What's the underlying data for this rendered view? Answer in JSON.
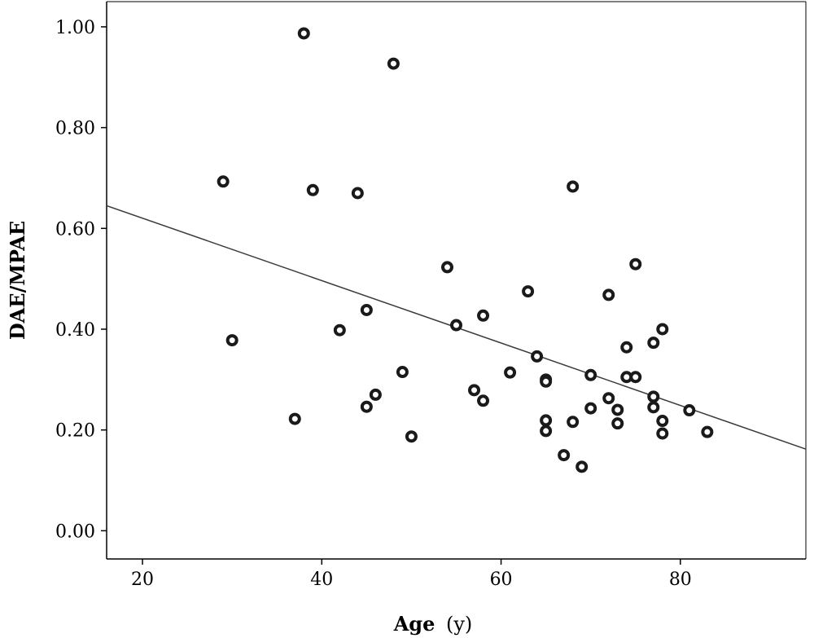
{
  "chart_data": {
    "type": "scatter",
    "title": "",
    "xlabel": {
      "bold": "Age",
      "normal": "(y)"
    },
    "ylabel": "DAE/MPAE",
    "xlim": [
      16,
      94
    ],
    "ylim": [
      -0.056,
      1.05
    ],
    "xticks": [
      20,
      40,
      60,
      80
    ],
    "yticks": [
      0.0,
      0.2,
      0.4,
      0.6,
      0.8,
      1.0
    ],
    "ytick_labels": [
      "0.00",
      "0.20",
      "0.40",
      "0.60",
      "0.80",
      "1.00"
    ],
    "grid": false,
    "points": [
      {
        "x": 29,
        "y": 0.693
      },
      {
        "x": 30,
        "y": 0.378
      },
      {
        "x": 37,
        "y": 0.222
      },
      {
        "x": 38,
        "y": 0.987
      },
      {
        "x": 39,
        "y": 0.676
      },
      {
        "x": 42,
        "y": 0.398
      },
      {
        "x": 44,
        "y": 0.67
      },
      {
        "x": 45,
        "y": 0.438
      },
      {
        "x": 45,
        "y": 0.246
      },
      {
        "x": 46,
        "y": 0.27
      },
      {
        "x": 48,
        "y": 0.927
      },
      {
        "x": 49,
        "y": 0.315
      },
      {
        "x": 50,
        "y": 0.187
      },
      {
        "x": 54,
        "y": 0.523
      },
      {
        "x": 55,
        "y": 0.408
      },
      {
        "x": 57,
        "y": 0.279
      },
      {
        "x": 58,
        "y": 0.427
      },
      {
        "x": 58,
        "y": 0.258
      },
      {
        "x": 61,
        "y": 0.314
      },
      {
        "x": 63,
        "y": 0.475
      },
      {
        "x": 64,
        "y": 0.346
      },
      {
        "x": 65,
        "y": 0.3
      },
      {
        "x": 65,
        "y": 0.296
      },
      {
        "x": 65,
        "y": 0.219
      },
      {
        "x": 65,
        "y": 0.198
      },
      {
        "x": 67,
        "y": 0.15
      },
      {
        "x": 68,
        "y": 0.683
      },
      {
        "x": 68,
        "y": 0.216
      },
      {
        "x": 69,
        "y": 0.127
      },
      {
        "x": 70,
        "y": 0.309
      },
      {
        "x": 70,
        "y": 0.243
      },
      {
        "x": 72,
        "y": 0.468
      },
      {
        "x": 72,
        "y": 0.263
      },
      {
        "x": 73,
        "y": 0.24
      },
      {
        "x": 73,
        "y": 0.213
      },
      {
        "x": 74,
        "y": 0.364
      },
      {
        "x": 74,
        "y": 0.305
      },
      {
        "x": 75,
        "y": 0.305
      },
      {
        "x": 75,
        "y": 0.529
      },
      {
        "x": 77,
        "y": 0.373
      },
      {
        "x": 77,
        "y": 0.266
      },
      {
        "x": 77,
        "y": 0.245
      },
      {
        "x": 78,
        "y": 0.4
      },
      {
        "x": 78,
        "y": 0.218
      },
      {
        "x": 78,
        "y": 0.193
      },
      {
        "x": 81,
        "y": 0.239
      },
      {
        "x": 83,
        "y": 0.196
      }
    ],
    "fit_line": {
      "x": [
        16,
        94
      ],
      "y": [
        0.645,
        0.162
      ]
    },
    "colors": {
      "point": "#1a1a1a",
      "line": "#3a3a3a",
      "axis": "#000000"
    }
  }
}
